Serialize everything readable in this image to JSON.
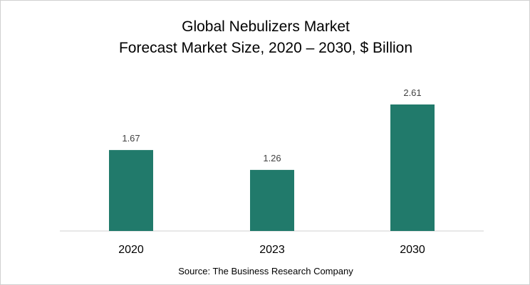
{
  "chart_data": {
    "type": "bar",
    "title": "Global Nebulizers  Market",
    "subtitle": "Forecast Market Size, 2020 – 2030, $ Billion",
    "categories": [
      "2020",
      "2023",
      "2030"
    ],
    "values": [
      1.67,
      1.26,
      2.61
    ],
    "data_labels": [
      "1.67",
      "1.26",
      "2.61"
    ],
    "xlabel": "",
    "ylabel": "",
    "ylim": [
      0,
      2.61
    ],
    "grid": false,
    "bar_color": "#217a6b",
    "source": "Source: The Business Research Company"
  }
}
